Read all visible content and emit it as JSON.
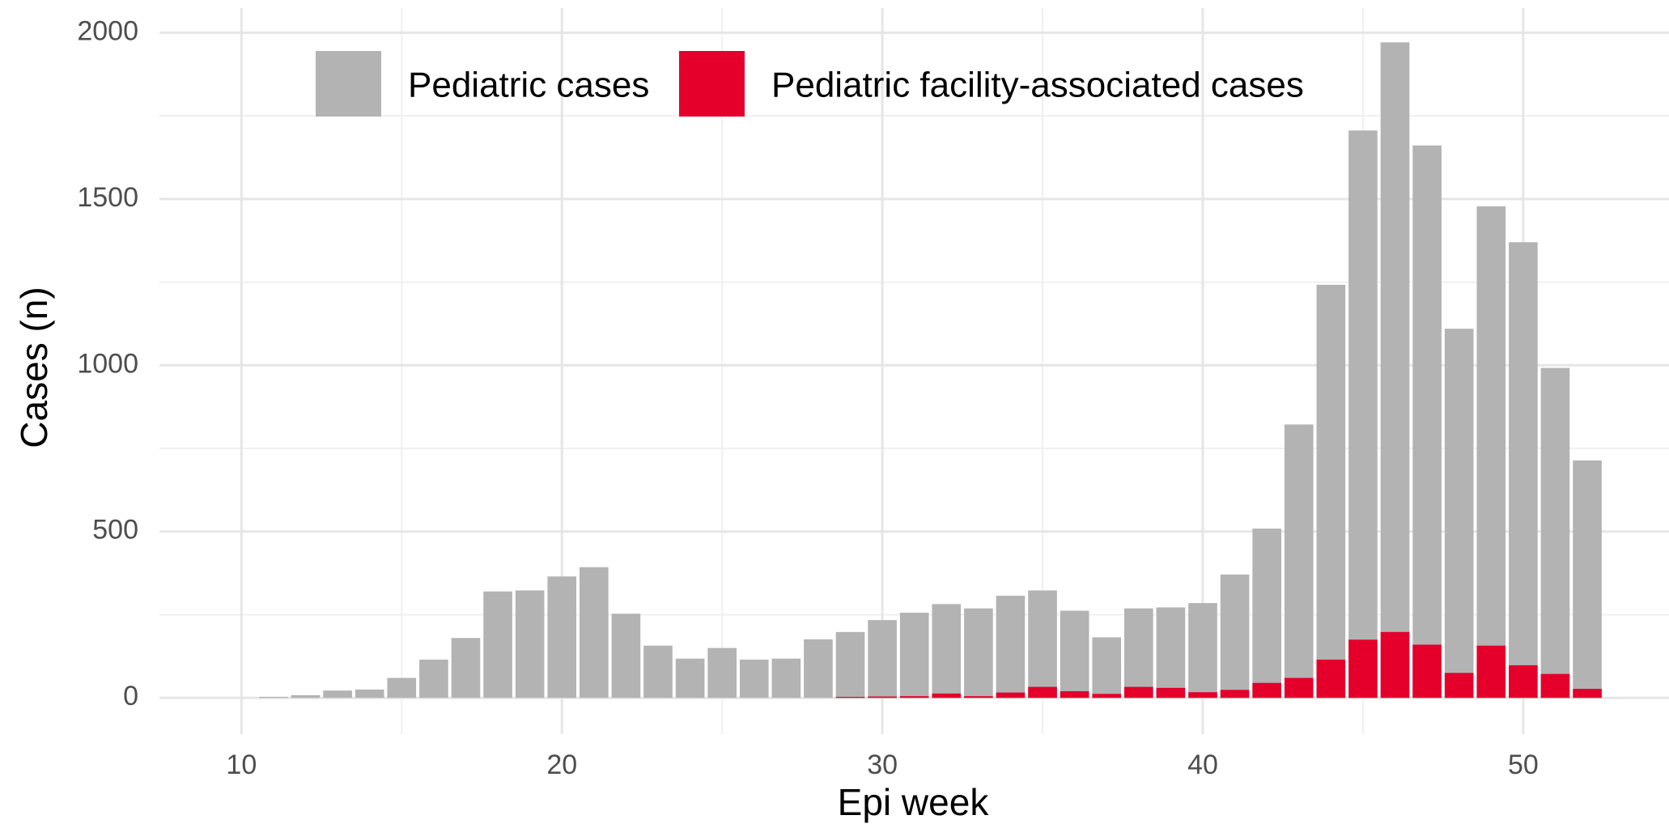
{
  "chart_data": {
    "type": "bar",
    "x_label": "Epi week",
    "y_label": "Cases (n)",
    "x": [
      11,
      12,
      13,
      14,
      15,
      16,
      17,
      18,
      19,
      20,
      21,
      22,
      23,
      24,
      25,
      26,
      27,
      28,
      29,
      30,
      31,
      32,
      33,
      34,
      35,
      36,
      37,
      38,
      39,
      40,
      41,
      42,
      43,
      44,
      45,
      46,
      47,
      48,
      49,
      50,
      51,
      52
    ],
    "series": [
      {
        "name": "Pediatric cases",
        "color": "#b3b3b3",
        "values": [
          3,
          8,
          22,
          25,
          60,
          115,
          180,
          320,
          323,
          365,
          393,
          253,
          157,
          118,
          150,
          115,
          118,
          176,
          198,
          234,
          256,
          282,
          269,
          307,
          323,
          262,
          182,
          269,
          272,
          285,
          371,
          509,
          822,
          1242,
          1706,
          1971,
          1661,
          1110,
          1478,
          1370,
          992,
          714
        ]
      },
      {
        "name": "Pediatric facility-associated cases",
        "color": "#e4002b",
        "values": [
          0,
          0,
          0,
          0,
          0,
          0,
          0,
          0,
          0,
          0,
          0,
          0,
          0,
          0,
          0,
          0,
          0,
          0,
          3,
          4,
          5,
          13,
          5,
          16,
          33,
          20,
          12,
          33,
          30,
          17,
          24,
          45,
          60,
          115,
          175,
          198,
          160,
          75,
          157,
          98,
          72,
          27
        ]
      }
    ],
    "xlim": [
      7.44,
      54.55
    ],
    "xticks": [
      10,
      20,
      30,
      40,
      50
    ],
    "xminor": [
      15,
      25,
      35,
      45
    ],
    "ylim": [
      -109,
      2074
    ],
    "yticks": [
      0,
      500,
      1000,
      1500,
      2000
    ],
    "yminor": [
      250,
      750,
      1250,
      1750
    ],
    "grid": true,
    "legend": "top-left",
    "bar_width": 0.9
  }
}
